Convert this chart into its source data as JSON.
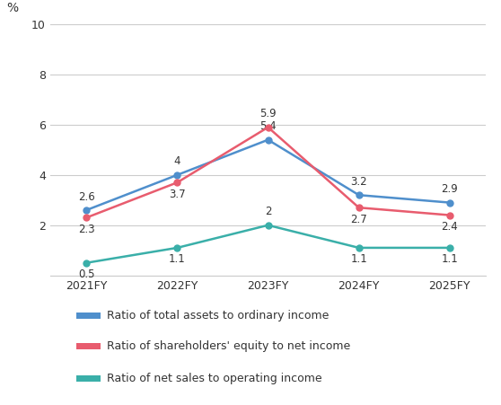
{
  "x_labels": [
    "2021FY",
    "2022FY",
    "2023FY",
    "2024FY",
    "2025FY"
  ],
  "series": [
    {
      "label": "Ratio of total assets to ordinary income",
      "values": [
        2.6,
        4.0,
        5.4,
        3.2,
        2.9
      ],
      "color": "#4f8fcc",
      "marker": "o"
    },
    {
      "label": "Ratio of shareholders' equity to net income",
      "values": [
        2.3,
        3.7,
        5.9,
        2.7,
        2.4
      ],
      "color": "#e85c6e",
      "marker": "o"
    },
    {
      "label": "Ratio of net sales to operating income",
      "values": [
        0.5,
        1.1,
        2.0,
        1.1,
        1.1
      ],
      "color": "#3aafa9",
      "marker": "o"
    }
  ],
  "ylabel": "%",
  "ylim": [
    0,
    10
  ],
  "yticks": [
    0,
    2,
    4,
    6,
    8,
    10
  ],
  "legend_bg_color": "#ebebeb",
  "background_color": "#ffffff",
  "grid_color": "#cccccc",
  "annotation_offsets": [
    [
      [
        0,
        6
      ],
      [
        0,
        6
      ],
      [
        0,
        6
      ],
      [
        0,
        6
      ],
      [
        0,
        6
      ]
    ],
    [
      [
        0,
        -14
      ],
      [
        0,
        -14
      ],
      [
        0,
        6
      ],
      [
        0,
        -14
      ],
      [
        0,
        -14
      ]
    ],
    [
      [
        0,
        -14
      ],
      [
        0,
        -14
      ],
      [
        0,
        6
      ],
      [
        0,
        -14
      ],
      [
        0,
        -14
      ]
    ]
  ]
}
